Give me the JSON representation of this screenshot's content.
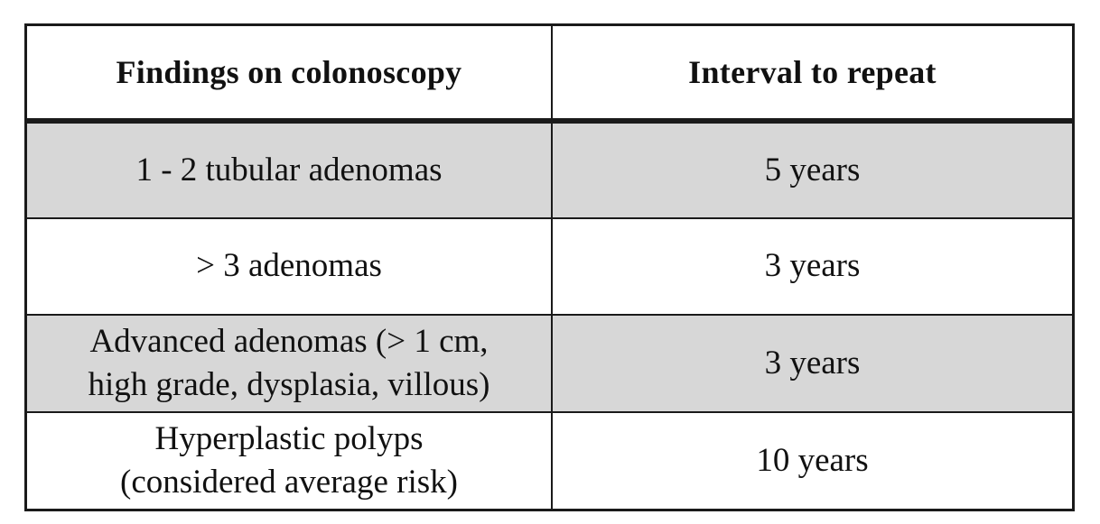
{
  "table": {
    "headers": [
      "Findings on colonoscopy",
      "Interval to repeat"
    ],
    "rows": [
      {
        "finding_lines": [
          "1 - 2 tubular adenomas"
        ],
        "interval": "5 years",
        "shaded": true
      },
      {
        "finding_lines": [
          "> 3 adenomas"
        ],
        "interval": "3 years",
        "shaded": false
      },
      {
        "finding_lines": [
          "Advanced adenomas (> 1 cm,",
          "high grade, dysplasia, villous)"
        ],
        "interval": "3 years",
        "shaded": true
      },
      {
        "finding_lines": [
          "Hyperplastic polyps",
          "(considered average risk)"
        ],
        "interval": "10 years",
        "shaded": false
      }
    ],
    "shade_color": "#d7d7d7",
    "border_color": "#1a1a1a"
  }
}
